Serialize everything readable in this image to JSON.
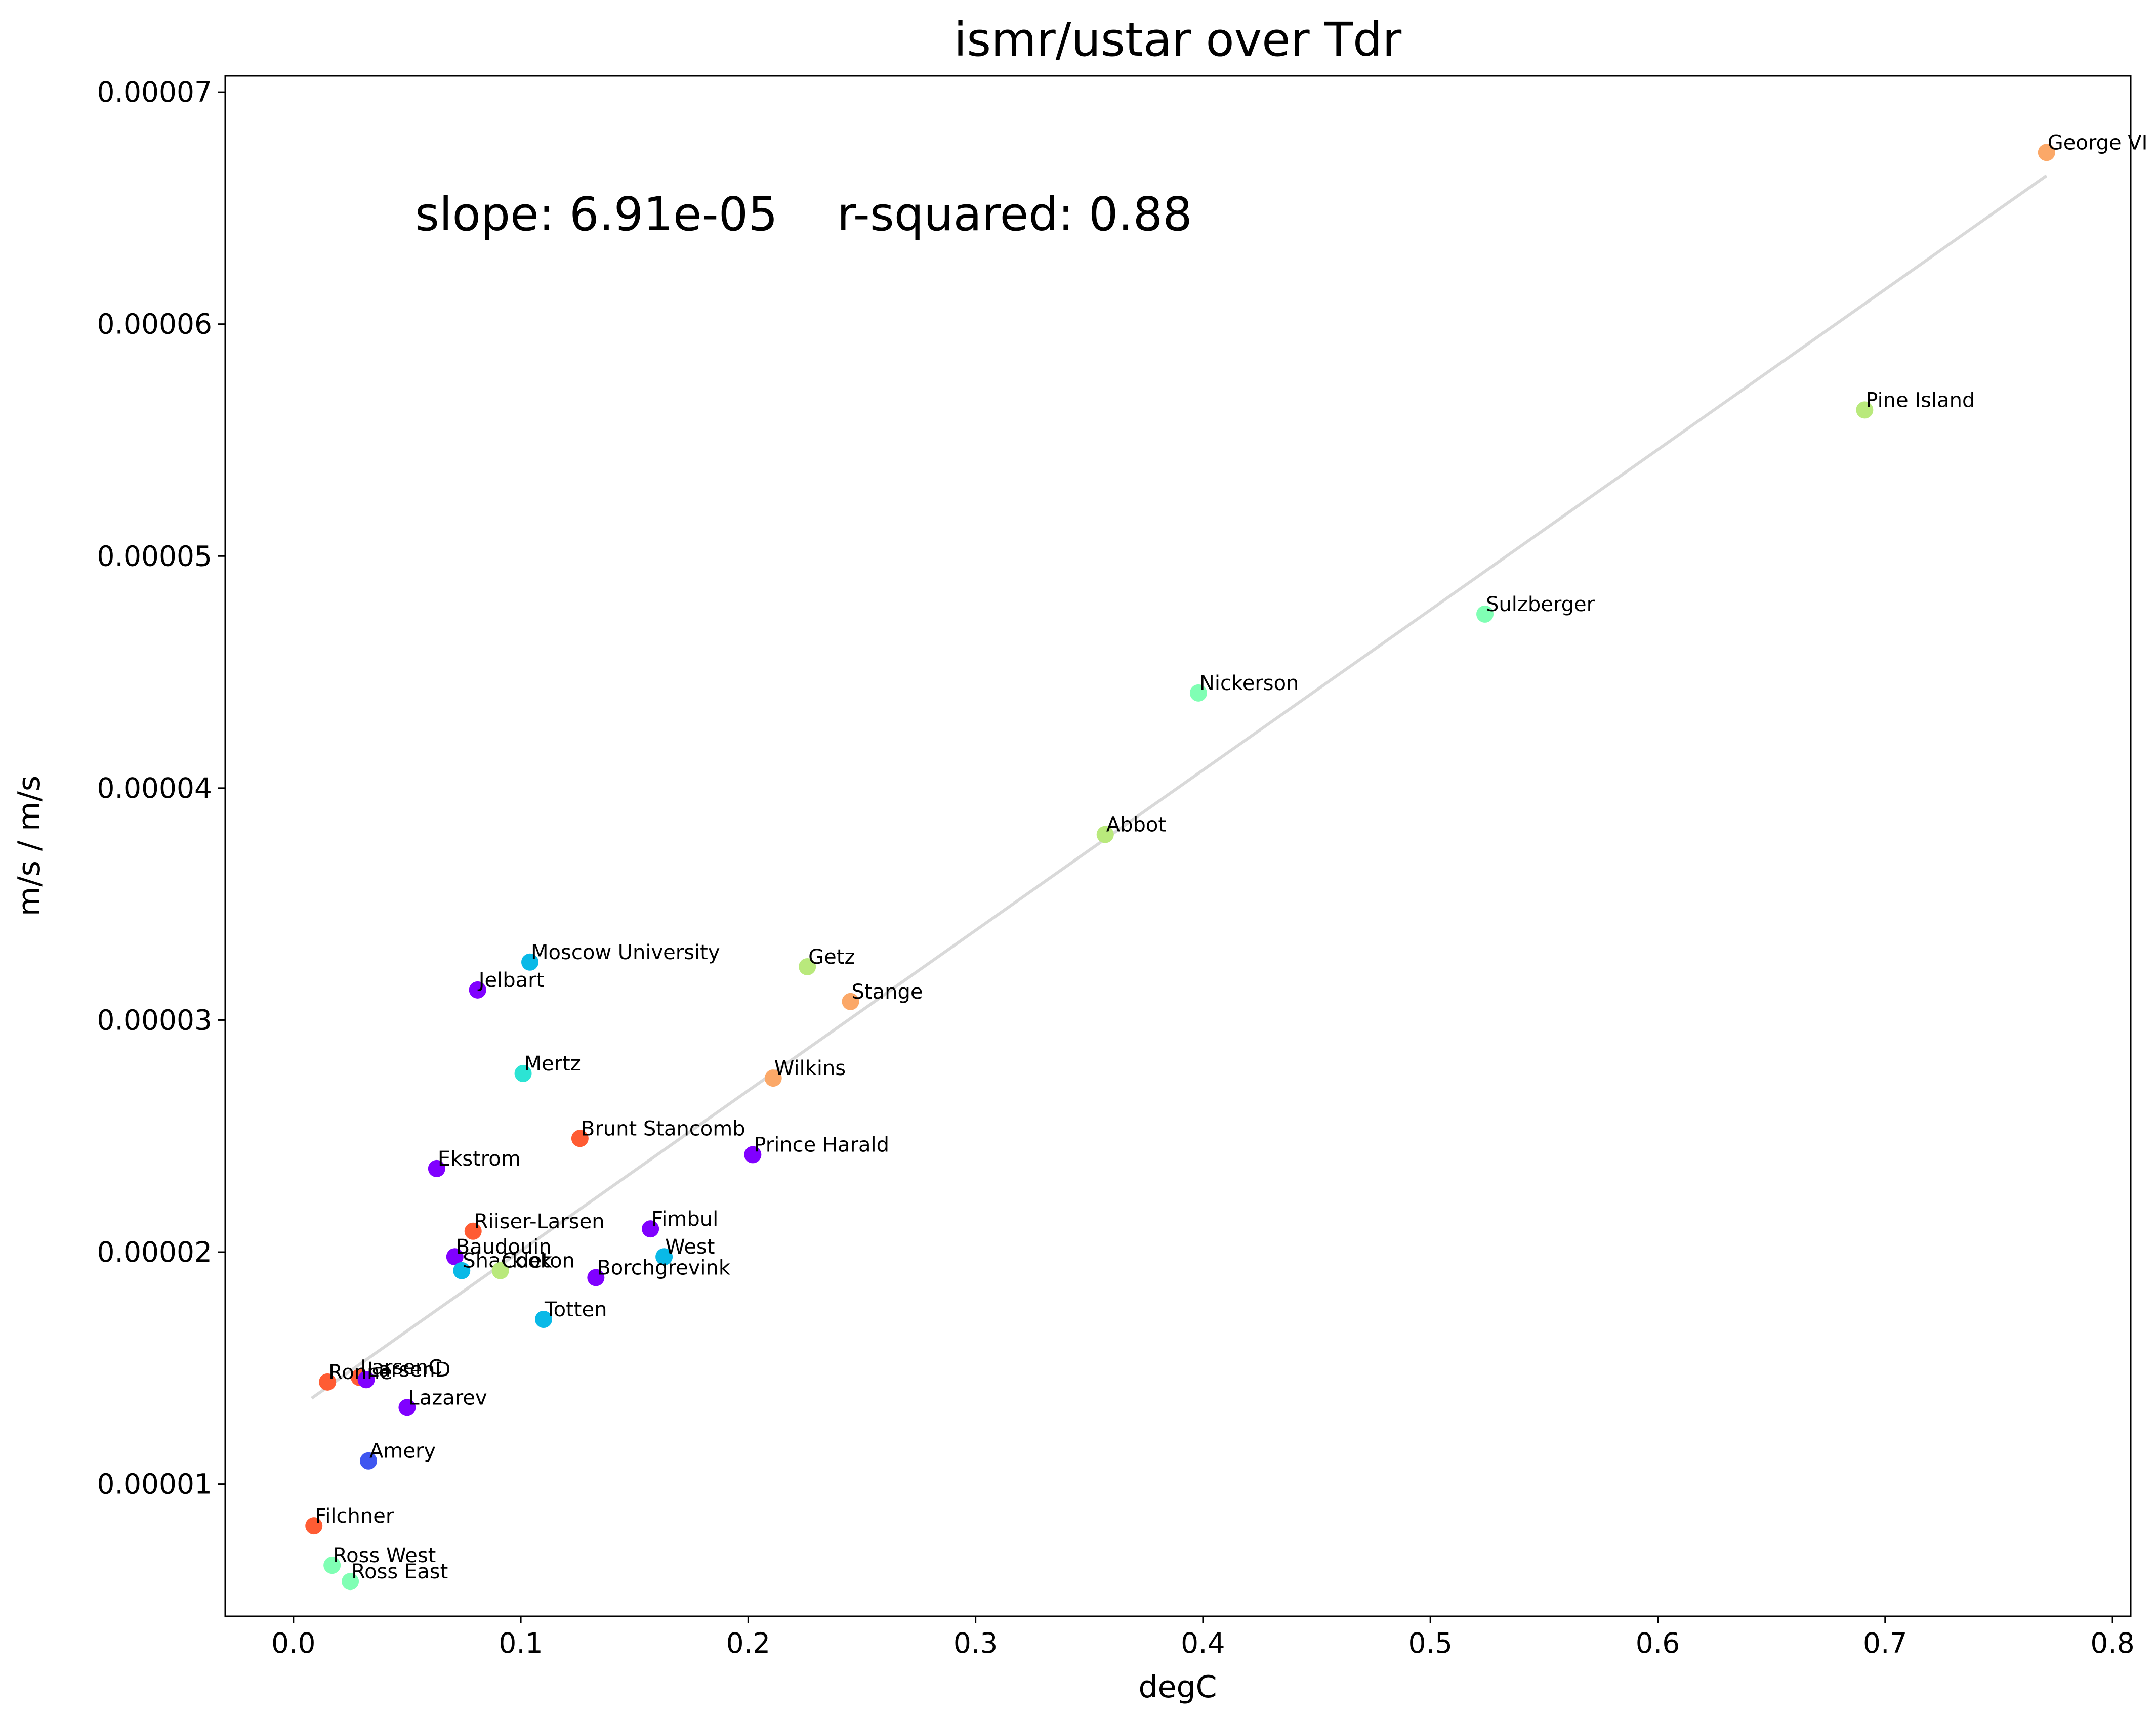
{
  "chart_data": {
    "type": "scatter",
    "title": "ismr/ustar over Tdr",
    "xlabel": "degC",
    "ylabel": "m/s / m/s",
    "annotation": "slope: 6.91e-05    r-squared: 0.88",
    "xlim": [
      -0.03,
      0.808
    ],
    "ylim": [
      4.3e-06,
      7.07e-05
    ],
    "x_ticks": [
      {
        "value": 0.0,
        "label": "0.0"
      },
      {
        "value": 0.1,
        "label": "0.1"
      },
      {
        "value": 0.2,
        "label": "0.2"
      },
      {
        "value": 0.3,
        "label": "0.3"
      },
      {
        "value": 0.4,
        "label": "0.4"
      },
      {
        "value": 0.5,
        "label": "0.5"
      },
      {
        "value": 0.6,
        "label": "0.6"
      },
      {
        "value": 0.7,
        "label": "0.7"
      },
      {
        "value": 0.8,
        "label": "0.8"
      }
    ],
    "y_ticks": [
      {
        "value": 1e-05,
        "label": "0.00001"
      },
      {
        "value": 2e-05,
        "label": "0.00002"
      },
      {
        "value": 3e-05,
        "label": "0.00003"
      },
      {
        "value": 4e-05,
        "label": "0.00004"
      },
      {
        "value": 5e-05,
        "label": "0.00005"
      },
      {
        "value": 6e-05,
        "label": "0.00006"
      },
      {
        "value": 7e-05,
        "label": "0.00007"
      }
    ],
    "grid": false,
    "fit_line": {
      "x": [
        0.008,
        0.771
      ],
      "y": [
        1.37e-05,
        6.64e-05
      ],
      "color": "#d9d9d9"
    },
    "points": [
      {
        "label": "George VI",
        "x": 0.771,
        "y": 6.74e-05,
        "color": "#fba868"
      },
      {
        "label": "Pine Island",
        "x": 0.691,
        "y": 5.63e-05,
        "color": "#b9e97c"
      },
      {
        "label": "Sulzberger",
        "x": 0.524,
        "y": 4.75e-05,
        "color": "#80ffb4"
      },
      {
        "label": "Nickerson",
        "x": 0.398,
        "y": 4.41e-05,
        "color": "#80ffb4"
      },
      {
        "label": "Abbot",
        "x": 0.357,
        "y": 3.8e-05,
        "color": "#b9e97c"
      },
      {
        "label": "Moscow University",
        "x": 0.104,
        "y": 3.25e-05,
        "color": "#09b9e7"
      },
      {
        "label": "Getz",
        "x": 0.226,
        "y": 3.23e-05,
        "color": "#b9e97c"
      },
      {
        "label": "Stange",
        "x": 0.245,
        "y": 3.08e-05,
        "color": "#fba868"
      },
      {
        "label": "Jelbart",
        "x": 0.081,
        "y": 3.13e-05,
        "color": "#8000ff"
      },
      {
        "label": "Mertz",
        "x": 0.101,
        "y": 2.77e-05,
        "color": "#2ce4d4"
      },
      {
        "label": "Wilkins",
        "x": 0.211,
        "y": 2.75e-05,
        "color": "#fba868"
      },
      {
        "label": "Brunt Stancomb",
        "x": 0.126,
        "y": 2.49e-05,
        "color": "#ff5c33"
      },
      {
        "label": "Prince Harald",
        "x": 0.202,
        "y": 2.42e-05,
        "color": "#8000ff"
      },
      {
        "label": "Ekstrom",
        "x": 0.063,
        "y": 2.36e-05,
        "color": "#8000ff"
      },
      {
        "label": "Fimbul",
        "x": 0.157,
        "y": 2.1e-05,
        "color": "#8000ff"
      },
      {
        "label": "Riiser-Larsen",
        "x": 0.079,
        "y": 2.09e-05,
        "color": "#ff5c33"
      },
      {
        "label": "West",
        "x": 0.163,
        "y": 1.98e-05,
        "color": "#09b9e7"
      },
      {
        "label": "Baudouin",
        "x": 0.071,
        "y": 1.98e-05,
        "color": "#8000ff"
      },
      {
        "label": "Shackleton",
        "x": 0.074,
        "y": 1.92e-05,
        "color": "#09b9e7"
      },
      {
        "label": "Cook",
        "x": 0.091,
        "y": 1.92e-05,
        "color": "#b9e97c"
      },
      {
        "label": "Borchgrevink",
        "x": 0.133,
        "y": 1.89e-05,
        "color": "#8000ff"
      },
      {
        "label": "Totten",
        "x": 0.11,
        "y": 1.71e-05,
        "color": "#09b9e7"
      },
      {
        "label": "LarsenC",
        "x": 0.029,
        "y": 1.46e-05,
        "color": "#ff5c33"
      },
      {
        "label": "LarsenD",
        "x": 0.032,
        "y": 1.45e-05,
        "color": "#8000ff"
      },
      {
        "label": "Ronne",
        "x": 0.015,
        "y": 1.44e-05,
        "color": "#ff5c33"
      },
      {
        "label": "Lazarev",
        "x": 0.05,
        "y": 1.33e-05,
        "color": "#8000ff"
      },
      {
        "label": "Amery",
        "x": 0.033,
        "y": 1.1e-05,
        "color": "#3f56f0"
      },
      {
        "label": "Filchner",
        "x": 0.009,
        "y": 8.2e-06,
        "color": "#ff5c33"
      },
      {
        "label": "Ross West",
        "x": 0.017,
        "y": 6.5e-06,
        "color": "#80ffb4"
      },
      {
        "label": "Ross East",
        "x": 0.025,
        "y": 5.8e-06,
        "color": "#80ffb4"
      }
    ]
  }
}
